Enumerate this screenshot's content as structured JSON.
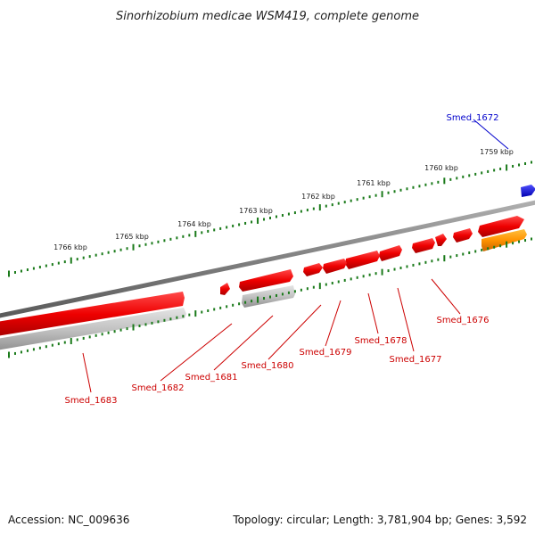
{
  "title": "Sinorhizobium medicae WSM419, complete genome",
  "footer": {
    "accession": "Accession: NC_009636",
    "summary": "Topology: circular; Length: 3,781,904 bp; Genes: 3,592"
  },
  "colors": {
    "forward_gene": "#ff0000",
    "reverse_gene": "#bdbdbd",
    "rna_gene": "#ff8c00",
    "highlight_gene": "#0000ff",
    "backbone": "#808080",
    "ticks": "#1a7a1a",
    "label_red": "#cc0000",
    "label_blue": "#0000cc"
  },
  "kbp_ticks": [
    "1759 kbp",
    "1760 kbp",
    "1761 kbp",
    "1762 kbp",
    "1763 kbp",
    "1764 kbp",
    "1765 kbp",
    "1766 kbp"
  ],
  "gene_labels": [
    {
      "id": "smed-1672",
      "text": "Smed_1672",
      "color": "blue"
    },
    {
      "id": "smed-1676",
      "text": "Smed_1676",
      "color": "red"
    },
    {
      "id": "smed-1677",
      "text": "Smed_1677",
      "color": "red"
    },
    {
      "id": "smed-1678",
      "text": "Smed_1678",
      "color": "red"
    },
    {
      "id": "smed-1679",
      "text": "Smed_1679",
      "color": "red"
    },
    {
      "id": "smed-1680",
      "text": "Smed_1680",
      "color": "red"
    },
    {
      "id": "smed-1681",
      "text": "Smed_1681",
      "color": "red"
    },
    {
      "id": "smed-1682",
      "text": "Smed_1682",
      "color": "red"
    },
    {
      "id": "smed-1683",
      "text": "Smed_1683",
      "color": "red"
    }
  ]
}
